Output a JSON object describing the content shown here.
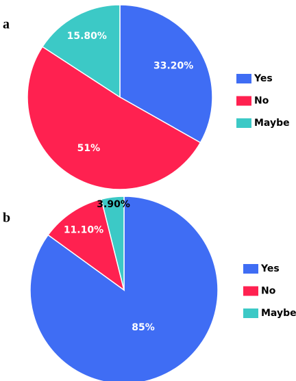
{
  "chart_data": [
    {
      "type": "pie",
      "title": "a",
      "categories": [
        "Yes",
        "No",
        "Maybe"
      ],
      "values": [
        33.2,
        51,
        15.8
      ],
      "value_labels": [
        "33.20%",
        "51%",
        "15.80%"
      ],
      "colors": [
        "#3f6df4",
        "#ff2150",
        "#3cc9c6"
      ]
    },
    {
      "type": "pie",
      "title": "b",
      "categories": [
        "Yes",
        "No",
        "Maybe"
      ],
      "values": [
        85,
        11.1,
        3.9
      ],
      "value_labels": [
        "85%",
        "11.10%",
        "3.90%"
      ],
      "colors": [
        "#3f6df4",
        "#ff2150",
        "#3cc9c6"
      ]
    }
  ]
}
